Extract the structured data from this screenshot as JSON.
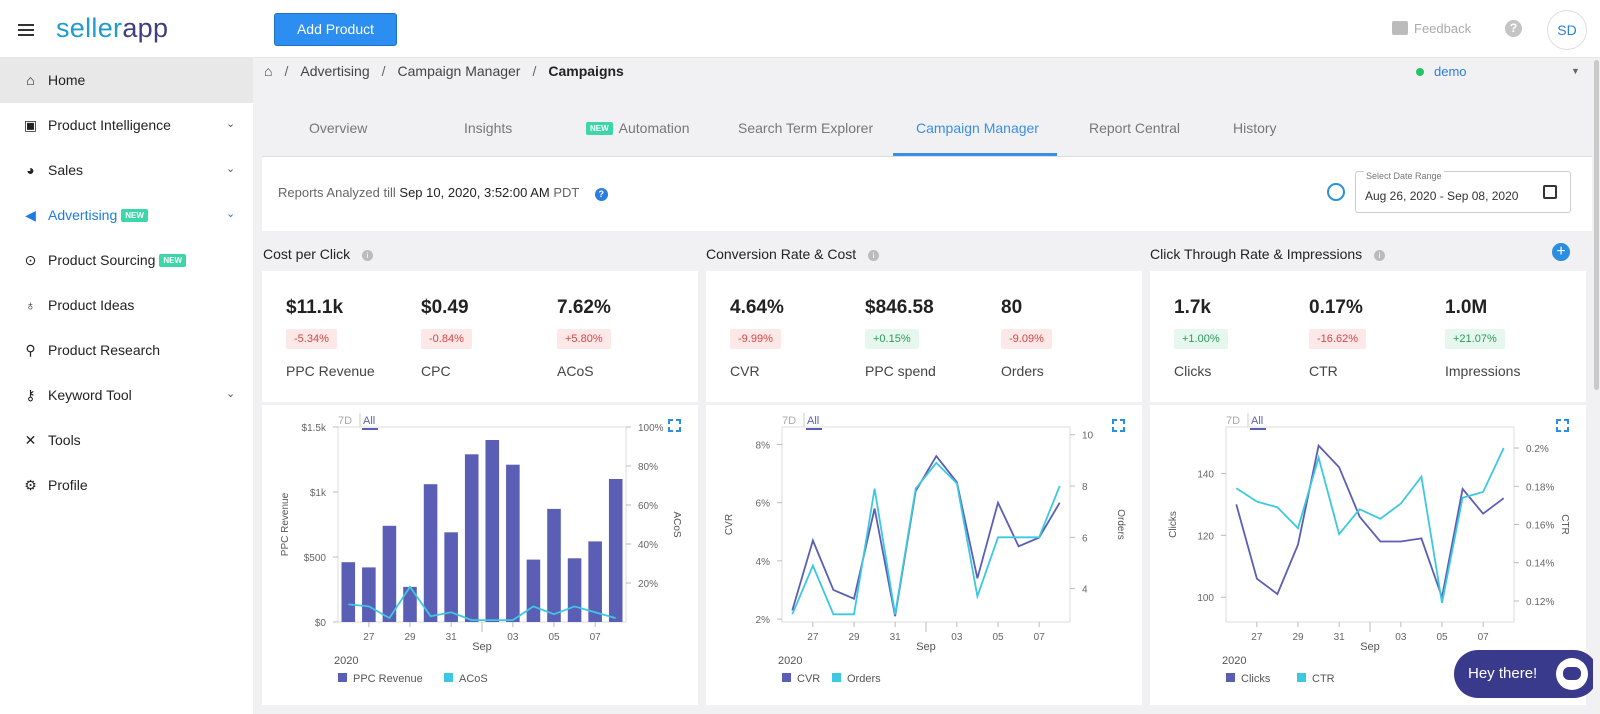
{
  "app": {
    "logo_a": "seller",
    "logo_b": "app",
    "add_button": "Add Product",
    "feedback": "Feedback",
    "help": "?",
    "avatar": "SD"
  },
  "sidebar": {
    "new_badge": "NEW",
    "items": [
      {
        "label": "Home",
        "icon": "home-icon"
      },
      {
        "label": "Product Intelligence",
        "icon": "box-icon"
      },
      {
        "label": "Sales",
        "icon": "pie-icon"
      },
      {
        "label": "Advertising",
        "icon": "megaphone-icon"
      },
      {
        "label": "Product Sourcing",
        "icon": "sourcing-icon"
      },
      {
        "label": "Product Ideas",
        "icon": "bulb-icon"
      },
      {
        "label": "Product Research",
        "icon": "search-icon"
      },
      {
        "label": "Keyword Tool",
        "icon": "key-icon"
      },
      {
        "label": "Tools",
        "icon": "tools-icon"
      },
      {
        "label": "Profile",
        "icon": "gear-icon"
      }
    ]
  },
  "breadcrumb": {
    "items": [
      "Advertising",
      "Campaign Manager",
      "Campaigns"
    ]
  },
  "account": {
    "name": "demo",
    "status_color": "#27c36a"
  },
  "tabs": {
    "new_badge": "NEW",
    "items": [
      "Overview",
      "Insights",
      "Automation",
      "Search Term Explorer",
      "Campaign Manager",
      "Report Central",
      "History"
    ],
    "active": "Campaign Manager"
  },
  "reports": {
    "prefix": "Reports Analyzed till",
    "date": "Sep 10, 2020, 3:52:00 AM",
    "tz": "PDT",
    "date_range_label": "Select Date Range",
    "date_range_value": "Aug 26, 2020 - Sep 08, 2020"
  },
  "sections": [
    {
      "title": "Cost per Click",
      "metrics": [
        {
          "value": "$11.1k",
          "delta": "-5.34%",
          "trend": "neg",
          "label": "PPC Revenue"
        },
        {
          "value": "$0.49",
          "delta": "-0.84%",
          "trend": "neg",
          "label": "CPC"
        },
        {
          "value": "7.62%",
          "delta": "+5.80%",
          "trend": "neg",
          "label": "ACoS"
        }
      ]
    },
    {
      "title": "Conversion Rate & Cost",
      "metrics": [
        {
          "value": "4.64%",
          "delta": "-9.99%",
          "trend": "neg",
          "label": "CVR"
        },
        {
          "value": "$846.58",
          "delta": "+0.15%",
          "trend": "pos",
          "label": "PPC spend"
        },
        {
          "value": "80",
          "delta": "-9.09%",
          "trend": "neg",
          "label": "Orders"
        }
      ]
    },
    {
      "title": "Click Through Rate & Impressions",
      "metrics": [
        {
          "value": "1.7k",
          "delta": "+1.00%",
          "trend": "pos",
          "label": "Clicks"
        },
        {
          "value": "0.17%",
          "delta": "-16.62%",
          "trend": "neg",
          "label": "CTR"
        },
        {
          "value": "1.0M",
          "delta": "+21.07%",
          "trend": "pos",
          "label": "Impressions"
        }
      ]
    }
  ],
  "chart_toggle": {
    "a": "7D",
    "b": "All"
  },
  "chart_data": [
    {
      "type": "bar",
      "x_ticks": [
        "27",
        "29",
        "31",
        "03",
        "05",
        "07"
      ],
      "x_month": "Sep",
      "year": "2020",
      "left_axis": {
        "label": "PPC Revenue",
        "ticks": [
          "$0",
          "$500",
          "$1k",
          "$1.5k"
        ],
        "range": [
          0,
          1500
        ]
      },
      "right_axis": {
        "label": "ACoS",
        "ticks": [
          "20%",
          "40%",
          "60%",
          "80%",
          "100%"
        ],
        "range": [
          0,
          100
        ]
      },
      "series": [
        {
          "name": "PPC Revenue",
          "kind": "bar",
          "axis": "left",
          "color": "#5b5eb5",
          "values": [
            460,
            420,
            740,
            270,
            1060,
            690,
            1290,
            1400,
            1210,
            480,
            870,
            490,
            620,
            1100
          ]
        },
        {
          "name": "ACoS",
          "kind": "line",
          "axis": "right",
          "color": "#3cc8e0",
          "values": [
            9,
            8,
            2,
            18,
            3,
            5,
            1,
            1,
            1,
            8,
            4,
            8,
            5,
            2
          ]
        }
      ]
    },
    {
      "type": "line",
      "x_ticks": [
        "27",
        "29",
        "31",
        "03",
        "05",
        "07"
      ],
      "x_month": "Sep",
      "year": "2020",
      "left_axis": {
        "label": "CVR",
        "ticks": [
          "2%",
          "4%",
          "6%",
          "8%"
        ],
        "range": [
          1.9,
          8.6
        ]
      },
      "right_axis": {
        "label": "Orders",
        "ticks": [
          "4",
          "6",
          "8",
          "10"
        ],
        "range": [
          2.7,
          10.3
        ]
      },
      "series": [
        {
          "name": "CVR",
          "kind": "line",
          "axis": "left",
          "color": "#5b5eb5",
          "values": [
            2.3,
            4.7,
            3.0,
            2.7,
            5.8,
            2.1,
            6.4,
            7.6,
            6.7,
            3.4,
            6.0,
            4.5,
            4.8,
            6.0
          ]
        },
        {
          "name": "Orders",
          "kind": "line",
          "axis": "right",
          "color": "#3cc8e0",
          "values": [
            3.0,
            4.9,
            3.0,
            3.0,
            7.9,
            3.0,
            7.9,
            8.9,
            8.1,
            3.7,
            6.0,
            6.0,
            6.0,
            8.0
          ]
        }
      ]
    },
    {
      "type": "line",
      "x_ticks": [
        "27",
        "29",
        "31",
        "03",
        "05",
        "07"
      ],
      "x_month": "Sep",
      "year": "2020",
      "left_axis": {
        "label": "Clicks",
        "ticks": [
          "100",
          "120",
          "140"
        ],
        "range": [
          92,
          155
        ]
      },
      "right_axis": {
        "label": "CTR",
        "ticks": [
          "0.12%",
          "0.14%",
          "0.16%",
          "0.18%",
          "0.2%"
        ],
        "range": [
          0.109,
          0.211
        ]
      },
      "series": [
        {
          "name": "Clicks",
          "kind": "line",
          "axis": "left",
          "color": "#5b5eb5",
          "values": [
            130,
            106,
            101,
            117,
            149,
            142,
            126,
            118,
            118,
            119,
            100,
            135,
            127,
            132
          ]
        },
        {
          "name": "CTR",
          "kind": "line",
          "axis": "right",
          "color": "#3cc8e0",
          "values": [
            0.179,
            0.172,
            0.169,
            0.158,
            0.195,
            0.155,
            0.168,
            0.163,
            0.171,
            0.185,
            0.119,
            0.174,
            0.177,
            0.2
          ]
        }
      ]
    }
  ],
  "chat": {
    "label": "Hey there!"
  }
}
